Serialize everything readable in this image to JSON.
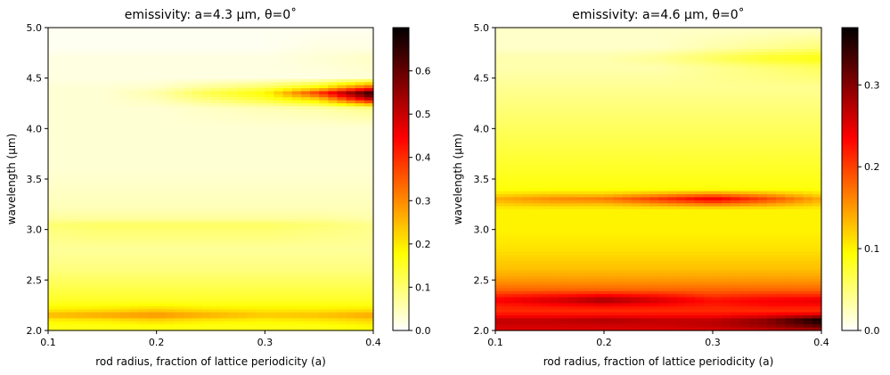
{
  "chart_data": [
    {
      "type": "heatmap",
      "title": "emissivity: a=4.3 µm, θ=0˚",
      "xlabel": "rod radius, fraction of lattice periodicity (a)",
      "ylabel": "wavelength (µm)",
      "xlim": [
        0.1,
        0.4
      ],
      "ylim": [
        2.0,
        5.0
      ],
      "xticks": [
        "0.1",
        "0.2",
        "0.3",
        "0.4"
      ],
      "yticks": [
        "2.0",
        "2.5",
        "3.0",
        "3.5",
        "4.0",
        "4.5",
        "5.0"
      ],
      "colormap": "hot_r",
      "colorbar": {
        "min": 0.0,
        "max": 0.7,
        "ticks": [
          "0.0",
          "0.1",
          "0.2",
          "0.3",
          "0.4",
          "0.5",
          "0.6"
        ]
      },
      "x": [
        0.1,
        0.15,
        0.2,
        0.25,
        0.3,
        0.35,
        0.4
      ],
      "y": [
        2.0,
        2.05,
        2.1,
        2.15,
        2.2,
        2.25,
        2.3,
        2.4,
        2.5,
        2.6,
        2.8,
        3.0,
        3.05,
        3.1,
        3.2,
        3.4,
        3.6,
        3.8,
        4.0,
        4.2,
        4.3,
        4.35,
        4.4,
        4.5,
        4.7,
        4.8,
        5.0
      ],
      "z": [
        [
          0.16,
          0.16,
          0.16,
          0.16,
          0.16,
          0.16,
          0.17
        ],
        [
          0.17,
          0.17,
          0.18,
          0.17,
          0.17,
          0.17,
          0.19
        ],
        [
          0.19,
          0.2,
          0.22,
          0.2,
          0.19,
          0.2,
          0.22
        ],
        [
          0.26,
          0.28,
          0.3,
          0.27,
          0.24,
          0.25,
          0.28
        ],
        [
          0.2,
          0.21,
          0.23,
          0.21,
          0.2,
          0.2,
          0.21
        ],
        [
          0.17,
          0.17,
          0.18,
          0.17,
          0.17,
          0.17,
          0.17
        ],
        [
          0.15,
          0.15,
          0.15,
          0.15,
          0.15,
          0.15,
          0.15
        ],
        [
          0.13,
          0.13,
          0.13,
          0.13,
          0.13,
          0.13,
          0.13
        ],
        [
          0.11,
          0.11,
          0.11,
          0.11,
          0.11,
          0.11,
          0.11
        ],
        [
          0.09,
          0.09,
          0.09,
          0.09,
          0.09,
          0.09,
          0.09
        ],
        [
          0.07,
          0.07,
          0.07,
          0.07,
          0.07,
          0.07,
          0.07
        ],
        [
          0.09,
          0.1,
          0.1,
          0.1,
          0.1,
          0.09,
          0.08
        ],
        [
          0.1,
          0.11,
          0.11,
          0.11,
          0.11,
          0.1,
          0.08
        ],
        [
          0.07,
          0.07,
          0.07,
          0.07,
          0.07,
          0.07,
          0.06
        ],
        [
          0.05,
          0.05,
          0.05,
          0.05,
          0.05,
          0.05,
          0.05
        ],
        [
          0.04,
          0.04,
          0.04,
          0.04,
          0.04,
          0.04,
          0.04
        ],
        [
          0.03,
          0.03,
          0.03,
          0.03,
          0.03,
          0.03,
          0.03
        ],
        [
          0.03,
          0.03,
          0.03,
          0.03,
          0.03,
          0.03,
          0.03
        ],
        [
          0.03,
          0.03,
          0.03,
          0.03,
          0.03,
          0.03,
          0.03
        ],
        [
          0.03,
          0.03,
          0.03,
          0.04,
          0.05,
          0.06,
          0.08
        ],
        [
          0.03,
          0.03,
          0.05,
          0.1,
          0.15,
          0.25,
          0.55
        ],
        [
          0.03,
          0.03,
          0.06,
          0.13,
          0.18,
          0.4,
          0.68
        ],
        [
          0.03,
          0.03,
          0.04,
          0.08,
          0.12,
          0.2,
          0.4
        ],
        [
          0.02,
          0.02,
          0.02,
          0.02,
          0.02,
          0.02,
          0.03
        ],
        [
          0.02,
          0.02,
          0.02,
          0.02,
          0.02,
          0.03,
          0.04
        ],
        [
          0.01,
          0.01,
          0.01,
          0.01,
          0.01,
          0.02,
          0.02
        ],
        [
          0.01,
          0.01,
          0.01,
          0.01,
          0.01,
          0.01,
          0.01
        ]
      ]
    },
    {
      "type": "heatmap",
      "title": "emissivity: a=4.6 µm, θ=0˚",
      "xlabel": "rod radius, fraction of lattice periodicity (a)",
      "ylabel": "wavelength (µm)",
      "xlim": [
        0.1,
        0.4
      ],
      "ylim": [
        2.0,
        5.0
      ],
      "xticks": [
        "0.1",
        "0.2",
        "0.3",
        "0.4"
      ],
      "yticks": [
        "2.0",
        "2.5",
        "3.0",
        "3.5",
        "4.0",
        "4.5",
        "5.0"
      ],
      "colormap": "hot_r",
      "colorbar": {
        "min": 0.0,
        "max": 0.37,
        "ticks": [
          "0.0",
          "0.1",
          "0.2",
          "0.3"
        ]
      },
      "x": [
        0.1,
        0.15,
        0.2,
        0.25,
        0.3,
        0.35,
        0.4
      ],
      "y": [
        2.0,
        2.05,
        2.1,
        2.15,
        2.2,
        2.25,
        2.3,
        2.35,
        2.4,
        2.5,
        2.6,
        2.8,
        3.0,
        3.2,
        3.25,
        3.3,
        3.35,
        3.4,
        3.6,
        3.8,
        4.0,
        4.2,
        4.4,
        4.6,
        4.7,
        4.8,
        5.0
      ],
      "z": [
        [
          0.25,
          0.25,
          0.25,
          0.25,
          0.25,
          0.26,
          0.27
        ],
        [
          0.26,
          0.26,
          0.26,
          0.26,
          0.27,
          0.29,
          0.33
        ],
        [
          0.27,
          0.27,
          0.28,
          0.27,
          0.27,
          0.3,
          0.37
        ],
        [
          0.23,
          0.23,
          0.23,
          0.23,
          0.23,
          0.24,
          0.26
        ],
        [
          0.21,
          0.21,
          0.21,
          0.21,
          0.21,
          0.21,
          0.21
        ],
        [
          0.22,
          0.23,
          0.24,
          0.23,
          0.22,
          0.23,
          0.23
        ],
        [
          0.24,
          0.26,
          0.29,
          0.26,
          0.23,
          0.24,
          0.25
        ],
        [
          0.21,
          0.22,
          0.23,
          0.22,
          0.2,
          0.21,
          0.21
        ],
        [
          0.18,
          0.18,
          0.18,
          0.18,
          0.18,
          0.18,
          0.18
        ],
        [
          0.15,
          0.15,
          0.15,
          0.15,
          0.15,
          0.15,
          0.15
        ],
        [
          0.13,
          0.13,
          0.13,
          0.13,
          0.13,
          0.13,
          0.13
        ],
        [
          0.11,
          0.11,
          0.11,
          0.11,
          0.11,
          0.11,
          0.11
        ],
        [
          0.1,
          0.1,
          0.1,
          0.1,
          0.1,
          0.1,
          0.1
        ],
        [
          0.1,
          0.1,
          0.1,
          0.1,
          0.1,
          0.1,
          0.1
        ],
        [
          0.12,
          0.13,
          0.13,
          0.15,
          0.17,
          0.15,
          0.12
        ],
        [
          0.14,
          0.16,
          0.17,
          0.21,
          0.25,
          0.2,
          0.14
        ],
        [
          0.11,
          0.12,
          0.12,
          0.14,
          0.16,
          0.14,
          0.11
        ],
        [
          0.09,
          0.09,
          0.09,
          0.09,
          0.09,
          0.09,
          0.09
        ],
        [
          0.08,
          0.08,
          0.08,
          0.08,
          0.08,
          0.08,
          0.08
        ],
        [
          0.07,
          0.07,
          0.07,
          0.07,
          0.07,
          0.07,
          0.07
        ],
        [
          0.06,
          0.06,
          0.06,
          0.06,
          0.06,
          0.06,
          0.06
        ],
        [
          0.05,
          0.05,
          0.05,
          0.05,
          0.05,
          0.05,
          0.05
        ],
        [
          0.04,
          0.04,
          0.04,
          0.04,
          0.04,
          0.04,
          0.04
        ],
        [
          0.03,
          0.03,
          0.03,
          0.03,
          0.04,
          0.05,
          0.06
        ],
        [
          0.03,
          0.03,
          0.03,
          0.04,
          0.06,
          0.08,
          0.09
        ],
        [
          0.02,
          0.02,
          0.02,
          0.02,
          0.03,
          0.04,
          0.05
        ],
        [
          0.02,
          0.02,
          0.02,
          0.02,
          0.02,
          0.02,
          0.02
        ]
      ]
    }
  ]
}
